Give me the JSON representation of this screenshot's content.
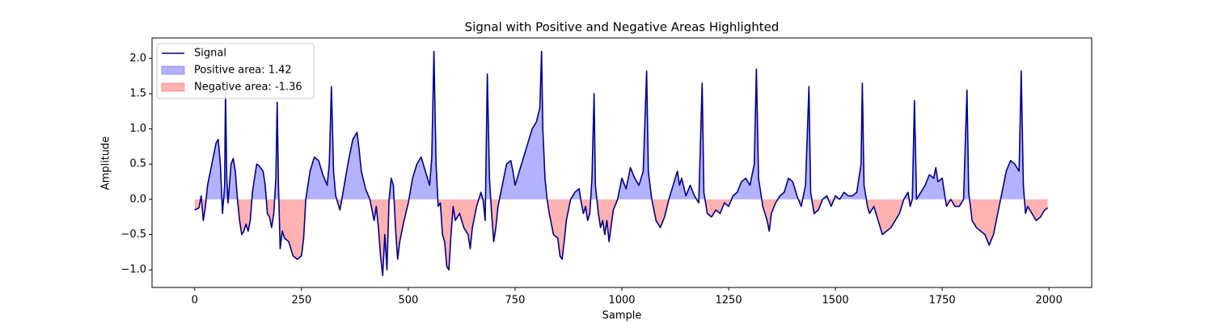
{
  "chart_data": {
    "type": "line",
    "title": "Signal with Positive and Negative Areas Highlighted",
    "x_label": "Sample",
    "y_label": "Amplitude",
    "xlim": [
      -100,
      2100
    ],
    "ylim": [
      -1.25,
      2.29
    ],
    "xticks": [
      0,
      250,
      500,
      750,
      1000,
      1250,
      1500,
      1750,
      2000
    ],
    "yticks": [
      {
        "value": -1,
        "label": "−1.0"
      },
      {
        "value": -0.5,
        "label": "−0.5"
      },
      {
        "value": 0,
        "label": "0.0"
      },
      0.5,
      {
        "value": 1,
        "label": "1.0"
      },
      1.5,
      {
        "value": 2,
        "label": "2.0"
      }
    ],
    "grid": false,
    "legend": "upper left",
    "x": [
      0,
      10,
      15,
      20,
      25,
      30,
      40,
      50,
      55,
      60,
      65,
      70,
      72,
      75,
      78,
      85,
      90,
      95,
      100,
      105,
      110,
      115,
      120,
      125,
      130,
      135,
      140,
      145,
      150,
      160,
      165,
      170,
      175,
      180,
      185,
      190,
      193,
      196,
      200,
      205,
      210,
      220,
      230,
      240,
      250,
      255,
      260,
      270,
      280,
      290,
      300,
      310,
      315,
      320,
      325,
      330,
      340,
      350,
      360,
      370,
      380,
      385,
      390,
      400,
      410,
      420,
      425,
      430,
      435,
      440,
      445,
      450,
      455,
      460,
      465,
      470,
      475,
      480,
      490,
      500,
      510,
      520,
      530,
      540,
      550,
      555,
      560,
      565,
      570,
      575,
      580,
      585,
      590,
      595,
      600,
      605,
      610,
      620,
      630,
      640,
      645,
      650,
      660,
      670,
      675,
      680,
      685,
      690,
      695,
      700,
      705,
      710,
      720,
      730,
      740,
      745,
      750,
      760,
      770,
      780,
      790,
      800,
      808,
      812,
      815,
      820,
      825,
      830,
      840,
      850,
      855,
      860,
      865,
      870,
      875,
      880,
      890,
      900,
      905,
      910,
      915,
      920,
      925,
      930,
      935,
      938,
      945,
      950,
      955,
      960,
      965,
      970,
      980,
      990,
      1000,
      1010,
      1020,
      1030,
      1040,
      1050,
      1058,
      1062,
      1070,
      1080,
      1090,
      1100,
      1110,
      1120,
      1130,
      1135,
      1140,
      1150,
      1160,
      1170,
      1180,
      1188,
      1192,
      1200,
      1210,
      1220,
      1230,
      1240,
      1250,
      1260,
      1270,
      1280,
      1290,
      1300,
      1310,
      1315,
      1320,
      1330,
      1340,
      1345,
      1350,
      1360,
      1370,
      1380,
      1390,
      1400,
      1410,
      1420,
      1430,
      1438,
      1442,
      1450,
      1460,
      1470,
      1480,
      1490,
      1500,
      1510,
      1520,
      1530,
      1540,
      1550,
      1560,
      1563,
      1567,
      1575,
      1580,
      1590,
      1600,
      1610,
      1620,
      1630,
      1640,
      1650,
      1660,
      1670,
      1675,
      1680,
      1685,
      1690,
      1700,
      1710,
      1720,
      1730,
      1735,
      1740,
      1750,
      1755,
      1760,
      1770,
      1780,
      1790,
      1800,
      1808,
      1812,
      1820,
      1830,
      1840,
      1850,
      1860,
      1870,
      1880,
      1890,
      1900,
      1910,
      1920,
      1930,
      1935,
      1940,
      1945,
      1950,
      1960,
      1970,
      1980,
      1990,
      1997
    ],
    "series": [
      {
        "name": "Signal",
        "color": "#00008b",
        "values": [
          -0.15,
          -0.12,
          0.05,
          -0.3,
          -0.1,
          0.2,
          0.5,
          0.8,
          0.85,
          0.5,
          -0.2,
          0.2,
          1.55,
          0.3,
          -0.05,
          0.5,
          0.58,
          0.4,
          0,
          -0.3,
          -0.5,
          -0.45,
          -0.35,
          -0.45,
          -0.3,
          0.1,
          0.3,
          0.5,
          0.48,
          0.4,
          0.2,
          -0.2,
          -0.25,
          -0.4,
          -0.2,
          0.3,
          1.38,
          0.2,
          -0.7,
          -0.45,
          -0.55,
          -0.6,
          -0.8,
          -0.85,
          -0.8,
          -0.55,
          0,
          0.4,
          0.6,
          0.55,
          0.35,
          0.2,
          0.5,
          1.6,
          0.4,
          0.05,
          -0.15,
          0.2,
          0.55,
          0.85,
          0.95,
          0.7,
          0.4,
          0.15,
          0,
          -0.3,
          -0.1,
          -0.4,
          -0.8,
          -1.08,
          -0.5,
          -1.0,
          0,
          0.3,
          0.2,
          -0.4,
          -0.85,
          -0.6,
          -0.3,
          -0.05,
          0.3,
          0.5,
          0.6,
          0.4,
          0.2,
          0.6,
          2.1,
          0.5,
          -0.1,
          -0.05,
          -0.5,
          -0.6,
          -0.95,
          -1.0,
          -0.5,
          -0.1,
          -0.3,
          -0.2,
          -0.4,
          -0.5,
          -0.7,
          -0.4,
          -0.1,
          0.1,
          0,
          -0.3,
          1.78,
          0.3,
          -0.2,
          -0.6,
          -0.4,
          -0.1,
          0.2,
          0.5,
          0.55,
          0.4,
          0.2,
          0.4,
          0.6,
          0.8,
          1.0,
          1.1,
          1.3,
          2.1,
          1.0,
          0.3,
          0,
          -0.2,
          -0.5,
          -0.55,
          -0.8,
          -0.85,
          -0.6,
          -0.3,
          -0.15,
          0,
          0.1,
          0.15,
          -0.05,
          -0.2,
          -0.1,
          -0.3,
          -0.2,
          0.3,
          1.5,
          0.2,
          -0.2,
          -0.4,
          -0.3,
          -0.5,
          -0.3,
          -0.6,
          -0.15,
          0,
          0.3,
          0.15,
          0.45,
          0.3,
          0.2,
          0.4,
          1.82,
          0.4,
          0,
          -0.3,
          -0.4,
          -0.25,
          0,
          0.2,
          0.4,
          0.2,
          0.3,
          0.05,
          0.2,
          0.05,
          -0.05,
          1.65,
          0.1,
          -0.2,
          -0.25,
          -0.15,
          -0.2,
          -0.05,
          -0.1,
          0.05,
          0.1,
          0.25,
          0.3,
          0.2,
          0.5,
          1.85,
          0.3,
          -0.1,
          -0.3,
          -0.45,
          -0.2,
          -0.05,
          0.05,
          0.1,
          0.3,
          0.25,
          0.05,
          -0.1,
          0.2,
          1.6,
          0.1,
          -0.2,
          -0.15,
          0,
          0.05,
          -0.1,
          0.05,
          0,
          0.1,
          0.05,
          0.05,
          0.1,
          0.5,
          1.65,
          0.2,
          -0.1,
          -0.2,
          -0.1,
          -0.3,
          -0.5,
          -0.45,
          -0.4,
          -0.3,
          -0.2,
          0,
          0.1,
          -0.1,
          0,
          1.4,
          0,
          0.1,
          0.2,
          0.35,
          0.3,
          0.45,
          0.25,
          0.3,
          0.1,
          -0.1,
          0,
          -0.1,
          -0.1,
          0,
          1.55,
          0.1,
          -0.3,
          -0.4,
          -0.45,
          -0.5,
          -0.65,
          -0.5,
          -0.2,
          0.1,
          0.4,
          0.55,
          0.5,
          0.4,
          1.82,
          0.2,
          -0.2,
          -0.1,
          -0.2,
          -0.3,
          -0.25,
          -0.15,
          -0.12
        ]
      }
    ],
    "areas": [
      {
        "name": "Positive area: 1.42",
        "color": "#0000ff",
        "fill": "above"
      },
      {
        "name": "Negative area: -1.36",
        "color": "#ff0000",
        "fill": "below"
      }
    ]
  }
}
